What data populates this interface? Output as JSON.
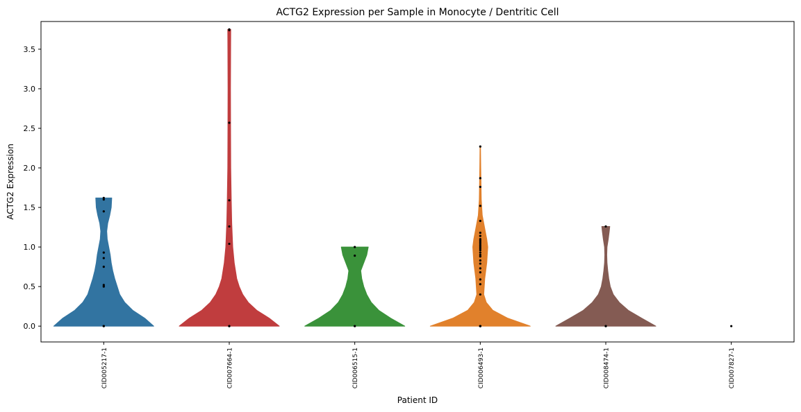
{
  "chart_data": {
    "type": "violin",
    "title": "ACTG2 Expression per Sample in Monocyte / Dentritic Cell",
    "xlabel": "Patient ID",
    "ylabel": "ACTG2 Expression",
    "ylim": [
      -0.2,
      3.85
    ],
    "yticks": [
      0.0,
      0.5,
      1.0,
      1.5,
      2.0,
      2.5,
      3.0,
      3.5
    ],
    "yticklabels": [
      "0.0",
      "0.5",
      "1.0",
      "1.5",
      "2.0",
      "2.5",
      "3.0",
      "3.5"
    ],
    "grid": false,
    "legend": "none",
    "categories": [
      "CID005217-1",
      "CID007664-1",
      "CID006515-1",
      "CID006493-1",
      "CID008474-1",
      "CID007827-1"
    ],
    "series": [
      {
        "category": "CID005217-1",
        "color": "#3274a1",
        "points": [
          0,
          0,
          0,
          0.5,
          0.52,
          0.75,
          0.86,
          0.93,
          1.45,
          1.6,
          1.62
        ],
        "density": [
          [
            0,
            1.0
          ],
          [
            0.1,
            0.82
          ],
          [
            0.2,
            0.58
          ],
          [
            0.3,
            0.42
          ],
          [
            0.4,
            0.32
          ],
          [
            0.5,
            0.27
          ],
          [
            0.6,
            0.22
          ],
          [
            0.7,
            0.18
          ],
          [
            0.8,
            0.15
          ],
          [
            0.9,
            0.13
          ],
          [
            1.0,
            0.1
          ],
          [
            1.1,
            0.07
          ],
          [
            1.2,
            0.06
          ],
          [
            1.3,
            0.08
          ],
          [
            1.4,
            0.12
          ],
          [
            1.5,
            0.15
          ],
          [
            1.62,
            0.16
          ]
        ]
      },
      {
        "category": "CID007664-1",
        "color": "#c03d3e",
        "points": [
          0,
          0,
          0,
          1.04,
          1.26,
          1.59,
          2.57,
          3.74,
          3.75
        ],
        "density": [
          [
            0,
            1.0
          ],
          [
            0.1,
            0.8
          ],
          [
            0.2,
            0.55
          ],
          [
            0.3,
            0.38
          ],
          [
            0.4,
            0.27
          ],
          [
            0.5,
            0.2
          ],
          [
            0.6,
            0.15
          ],
          [
            0.8,
            0.1
          ],
          [
            1.0,
            0.07
          ],
          [
            1.3,
            0.05
          ],
          [
            1.6,
            0.04
          ],
          [
            2.0,
            0.03
          ],
          [
            2.5,
            0.027
          ],
          [
            3.0,
            0.025
          ],
          [
            3.5,
            0.028
          ],
          [
            3.75,
            0.03
          ]
        ]
      },
      {
        "category": "CID006515-1",
        "color": "#3a923a",
        "points": [
          0,
          0,
          0.89,
          1.0
        ],
        "density": [
          [
            0,
            1.0
          ],
          [
            0.1,
            0.72
          ],
          [
            0.2,
            0.48
          ],
          [
            0.3,
            0.33
          ],
          [
            0.4,
            0.24
          ],
          [
            0.5,
            0.18
          ],
          [
            0.6,
            0.14
          ],
          [
            0.7,
            0.12
          ],
          [
            0.8,
            0.18
          ],
          [
            0.9,
            0.24
          ],
          [
            1.0,
            0.27
          ]
        ]
      },
      {
        "category": "CID006493-1",
        "color": "#e1812c",
        "points": [
          0,
          0,
          0,
          0,
          0,
          0.4,
          0.53,
          0.59,
          0.68,
          0.73,
          0.79,
          0.83,
          0.88,
          0.9,
          0.93,
          0.96,
          0.98,
          1.0,
          1.02,
          1.04,
          1.06,
          1.08,
          1.1,
          1.14,
          1.18,
          1.33,
          1.52,
          1.76,
          1.87,
          2.27
        ],
        "density": [
          [
            0,
            1.0
          ],
          [
            0.1,
            0.55
          ],
          [
            0.2,
            0.25
          ],
          [
            0.3,
            0.12
          ],
          [
            0.4,
            0.07
          ],
          [
            0.5,
            0.08
          ],
          [
            0.6,
            0.09
          ],
          [
            0.7,
            0.11
          ],
          [
            0.8,
            0.13
          ],
          [
            0.9,
            0.14
          ],
          [
            1.0,
            0.15
          ],
          [
            1.1,
            0.13
          ],
          [
            1.2,
            0.1
          ],
          [
            1.3,
            0.07
          ],
          [
            1.4,
            0.04
          ],
          [
            1.6,
            0.02
          ],
          [
            1.8,
            0.015
          ],
          [
            2.0,
            0.01
          ],
          [
            2.27,
            0.005
          ]
        ]
      },
      {
        "category": "CID008474-1",
        "color": "#845b53",
        "points": [
          0,
          0,
          0,
          1.26
        ],
        "density": [
          [
            0,
            1.0
          ],
          [
            0.1,
            0.72
          ],
          [
            0.2,
            0.45
          ],
          [
            0.3,
            0.27
          ],
          [
            0.4,
            0.15
          ],
          [
            0.5,
            0.09
          ],
          [
            0.6,
            0.06
          ],
          [
            0.7,
            0.04
          ],
          [
            0.8,
            0.025
          ],
          [
            0.9,
            0.02
          ],
          [
            1.0,
            0.025
          ],
          [
            1.1,
            0.05
          ],
          [
            1.2,
            0.07
          ],
          [
            1.26,
            0.08
          ]
        ]
      },
      {
        "category": "CID007827-1",
        "color": "#845b53",
        "points": [
          0
        ],
        "density": []
      }
    ]
  }
}
